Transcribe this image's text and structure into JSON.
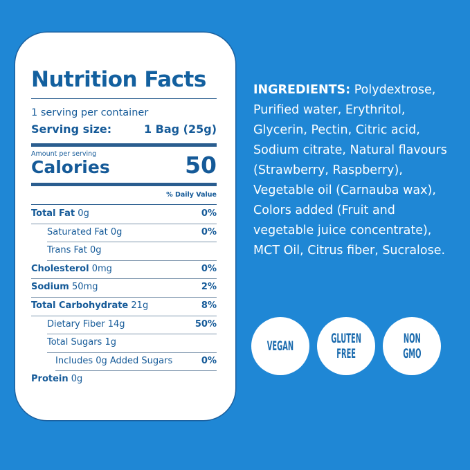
{
  "label": {
    "title": "Nutrition Facts",
    "servings_per_container": "1 serving per container",
    "serving_size_label": "Serving size:",
    "serving_size_value": "1 Bag (25g)",
    "amount_per_serving": "Amount per serving",
    "calories_label": "Calories",
    "calories_value": "50",
    "daily_value_header": "% Daily Value",
    "rows": [
      {
        "name": "Total Fat",
        "amount": "0g",
        "dv": "0%"
      },
      {
        "name": "Saturated Fat",
        "amount": "0g",
        "dv": "0%"
      },
      {
        "name": "Trans Fat",
        "amount": "0g",
        "dv": ""
      },
      {
        "name": "Cholesterol",
        "amount": "0mg",
        "dv": "0%"
      },
      {
        "name": "Sodium",
        "amount": "50mg",
        "dv": "2%"
      },
      {
        "name": "Total Carbohydrate",
        "amount": "21g",
        "dv": "8%"
      },
      {
        "name": "Dietary Fiber",
        "amount": "14g",
        "dv": "50%"
      },
      {
        "name": "Total Sugars",
        "amount": "1g",
        "dv": ""
      },
      {
        "name": "Includes 0g Added Sugars",
        "amount": "",
        "dv": "0%"
      },
      {
        "name": "Protein",
        "amount": "0g",
        "dv": ""
      }
    ]
  },
  "ingredients": {
    "heading": "INGREDIENTS:",
    "text": "Polydextrose, Purified water, Erythritol, Glycerin, Pectin, Citric acid, Sodium citrate, Natural flavours (Strawberry, Raspberry), Vegetable oil (Carnauba wax), Colors added (Fruit and vegetable juice concentrate), MCT Oil, Citrus fiber, Sucralose."
  },
  "badges": [
    {
      "line1": "VEGAN",
      "line2": ""
    },
    {
      "line1": "GLUTEN",
      "line2": "FREE"
    },
    {
      "line1": "NON",
      "line2": "GMO"
    }
  ],
  "colors": {
    "background": "#1f87d5",
    "text": "#155a98",
    "card": "#ffffff"
  }
}
